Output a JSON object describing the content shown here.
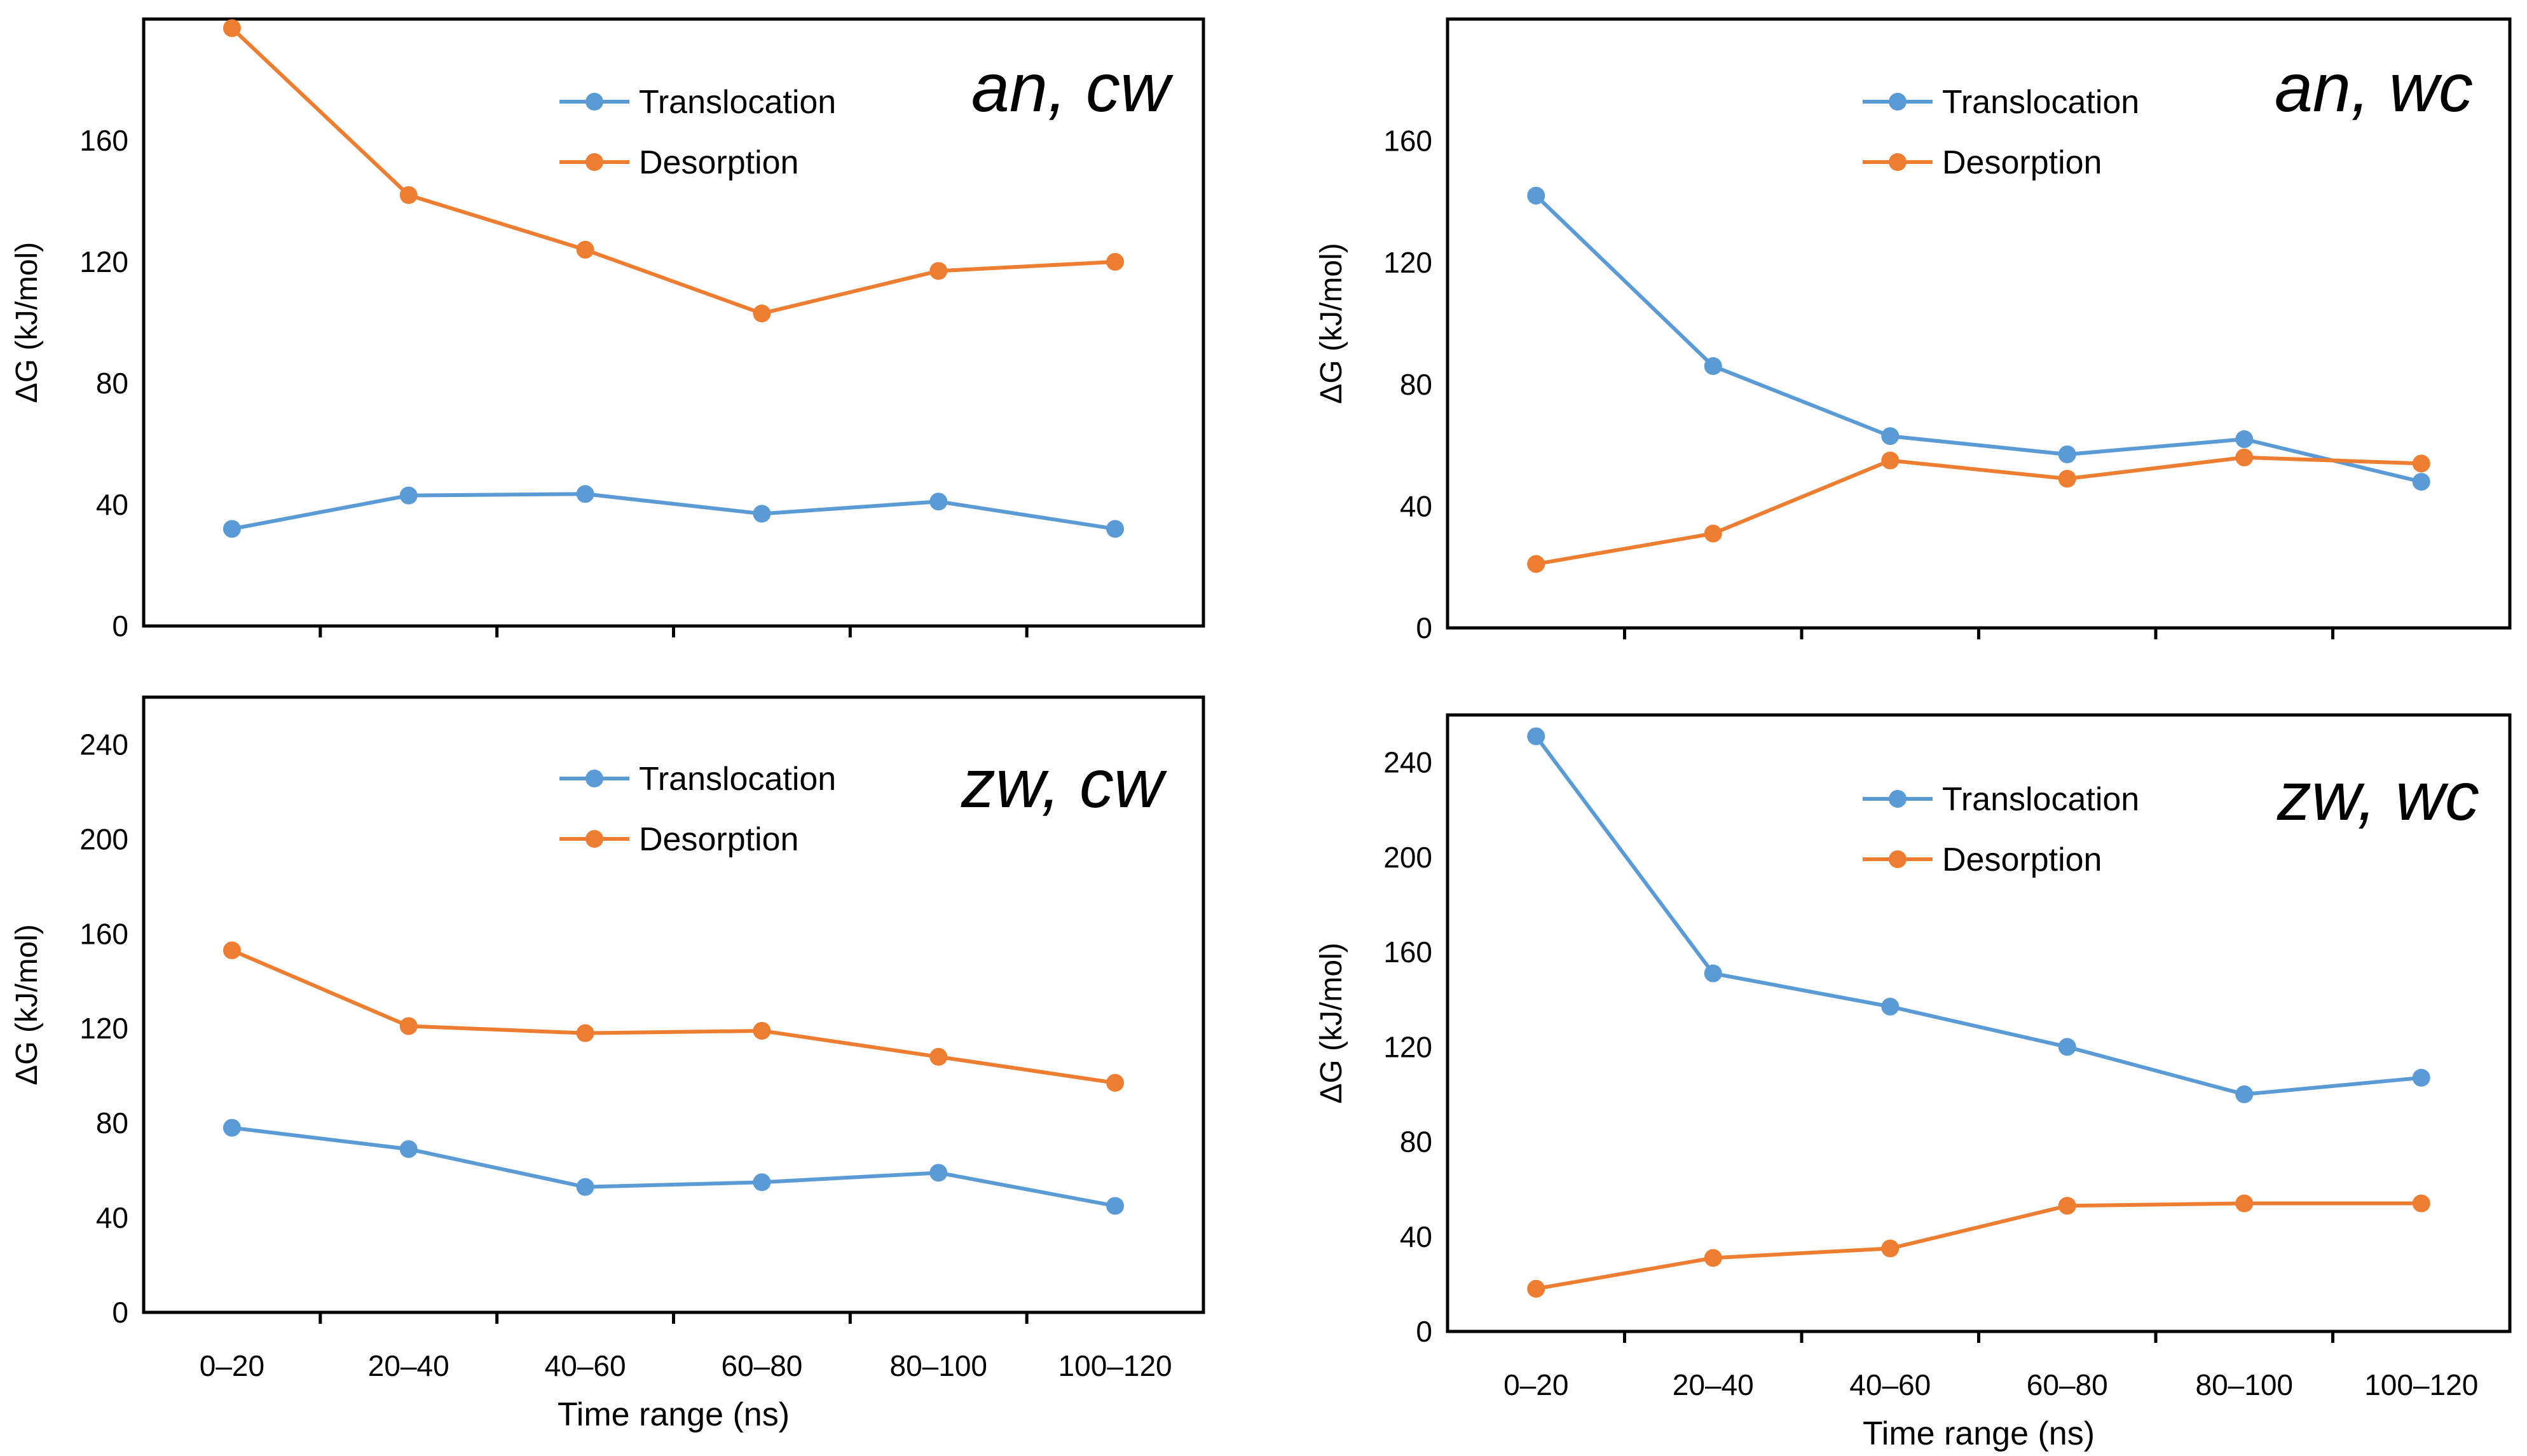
{
  "colors": {
    "translocation": "#5b9bd5",
    "desorption": "#ed7d31",
    "axis": "#000000",
    "background": "#ffffff"
  },
  "chart_data": [
    {
      "type": "line",
      "title": "an, cw",
      "categories": [
        "0–20",
        "20–40",
        "40–60",
        "60–80",
        "80–100",
        "100–120"
      ],
      "series": [
        {
          "name": "Translocation",
          "values": [
            32,
            43,
            43.5,
            37,
            41,
            32
          ]
        },
        {
          "name": "Desorption",
          "values": [
            197,
            142,
            124,
            103,
            117,
            120
          ]
        }
      ],
      "xlabel": "",
      "ylabel": "ΔG (kJ/mol)",
      "ylim": [
        0,
        200
      ],
      "yticks": [
        "0",
        "40",
        "80",
        "120",
        "160"
      ],
      "show_category_labels": false,
      "legend": "top-center"
    },
    {
      "type": "line",
      "title": "an, wc",
      "categories": [
        "0–20",
        "20–40",
        "40–60",
        "60–80",
        "80–100",
        "100–120"
      ],
      "series": [
        {
          "name": "Translocation",
          "values": [
            142,
            86,
            63,
            57,
            62,
            48
          ]
        },
        {
          "name": "Desorption",
          "values": [
            21,
            31,
            55,
            49,
            56,
            54
          ]
        }
      ],
      "xlabel": "",
      "ylabel": "ΔG (kJ/mol)",
      "ylim": [
        0,
        200
      ],
      "yticks": [
        "0",
        "40",
        "80",
        "120",
        "160"
      ],
      "show_category_labels": false,
      "legend": "top-center"
    },
    {
      "type": "line",
      "title": "zw, cw",
      "categories": [
        "0–20",
        "20–40",
        "40–60",
        "60–80",
        "80–100",
        "100–120"
      ],
      "series": [
        {
          "name": "Translocation",
          "values": [
            78,
            69,
            53,
            55,
            59,
            45
          ]
        },
        {
          "name": "Desorption",
          "values": [
            153,
            121,
            118,
            119,
            108,
            97
          ]
        }
      ],
      "xlabel": "Time range (ns)",
      "ylabel": "ΔG (kJ/mol)",
      "ylim": [
        0,
        260
      ],
      "yticks": [
        "0",
        "40",
        "80",
        "120",
        "160",
        "200",
        "240"
      ],
      "show_category_labels": true,
      "legend": "top-center"
    },
    {
      "type": "line",
      "title": "zw, wc",
      "categories": [
        "0–20",
        "20–40",
        "40–60",
        "60–80",
        "80–100",
        "100–120"
      ],
      "series": [
        {
          "name": "Translocation",
          "values": [
            251,
            151,
            137,
            120,
            100,
            107
          ]
        },
        {
          "name": "Desorption",
          "values": [
            18,
            31,
            35,
            53,
            54,
            54
          ]
        }
      ],
      "xlabel": "Time range (ns)",
      "ylabel": "ΔG (kJ/mol)",
      "ylim": [
        0,
        260
      ],
      "yticks": [
        "0",
        "40",
        "80",
        "120",
        "160",
        "200",
        "240"
      ],
      "show_category_labels": true,
      "legend": "top-center"
    }
  ]
}
